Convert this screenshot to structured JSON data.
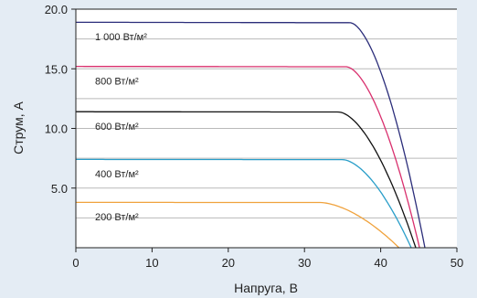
{
  "chart_data": {
    "type": "line",
    "title": "",
    "xlabel": "Напруга, В",
    "ylabel": "Струм, А",
    "xlim": [
      0,
      50
    ],
    "ylim": [
      0,
      20
    ],
    "x_ticks": [
      "0",
      "10",
      "20",
      "30",
      "40",
      "50"
    ],
    "y_ticks": [
      "5.0",
      "10.0",
      "15.0",
      "20.0"
    ],
    "grid": "horizontal",
    "series": [
      {
        "name": "1 000 Вт/м²",
        "color": "#2b2d7a",
        "isc": 18.9,
        "voc": 45.8,
        "knee": 36.0,
        "x": [
          0,
          10,
          20,
          30,
          36,
          40,
          42,
          44,
          45,
          45.8
        ],
        "values": [
          18.9,
          18.9,
          18.9,
          18.8,
          18.2,
          15.8,
          12.7,
          7.4,
          3.9,
          0
        ]
      },
      {
        "name": "800 Вт/м²",
        "color": "#d9306e",
        "isc": 15.2,
        "voc": 45.1,
        "knee": 35.5,
        "x": [
          0,
          10,
          20,
          30,
          35.5,
          40,
          42,
          44,
          45.1
        ],
        "values": [
          15.2,
          15.2,
          15.2,
          15.1,
          14.6,
          11.7,
          8.8,
          4.1,
          0
        ]
      },
      {
        "name": "600 Вт/м²",
        "color": "#111111",
        "isc": 11.4,
        "voc": 44.6,
        "knee": 34.5,
        "x": [
          0,
          10,
          20,
          30,
          34.5,
          38,
          40,
          42,
          43.5,
          44.6
        ],
        "values": [
          11.4,
          11.4,
          11.4,
          11.4,
          11.1,
          9.4,
          7.6,
          4.8,
          2.0,
          0
        ]
      },
      {
        "name": "400 Вт/м²",
        "color": "#2a9ec9",
        "isc": 7.4,
        "voc": 44.0,
        "knee": 35.0,
        "x": [
          0,
          10,
          20,
          30,
          35,
          38,
          40,
          42,
          43,
          44.0
        ],
        "values": [
          7.4,
          7.4,
          7.4,
          7.4,
          7.3,
          6.3,
          5.0,
          3.0,
          1.6,
          0
        ]
      },
      {
        "name": "200 Вт/м²",
        "color": "#f0a23c",
        "isc": 3.8,
        "voc": 42.4,
        "knee": 32.0,
        "x": [
          0,
          10,
          20,
          30,
          32,
          36,
          38,
          40,
          41.5,
          42.4
        ],
        "values": [
          3.8,
          3.8,
          3.8,
          3.8,
          3.75,
          3.3,
          2.8,
          1.9,
          0.9,
          0
        ]
      }
    ],
    "label_y_values": [
      17.7,
      14.0,
      10.2,
      6.2,
      2.6
    ]
  }
}
